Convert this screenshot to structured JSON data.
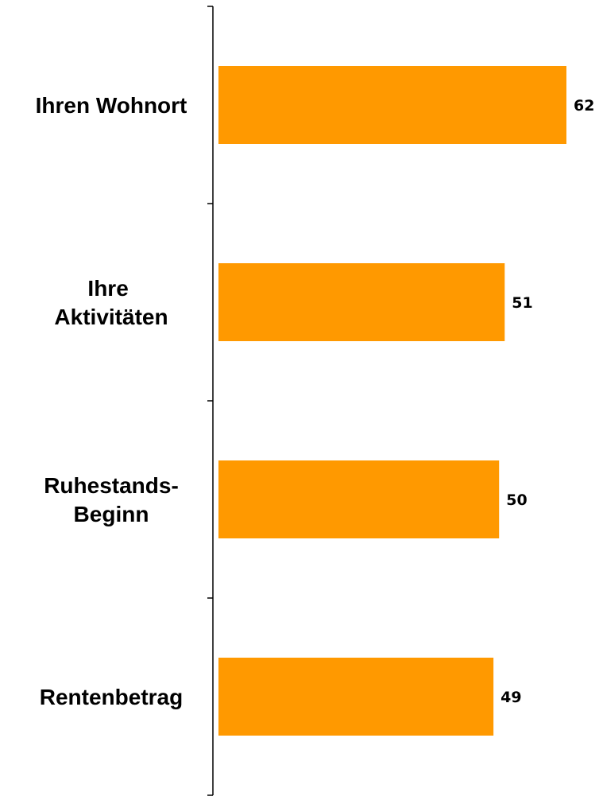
{
  "chart_data": {
    "type": "hbar",
    "categories": [
      "Ihren Wohnort",
      "Ihre Aktivitäten",
      "Ruhestands-Beginn",
      "Rentenbetrag"
    ],
    "values": [
      62,
      51,
      50,
      49
    ],
    "color": "#ff9900",
    "xlim": [
      0,
      62
    ]
  }
}
